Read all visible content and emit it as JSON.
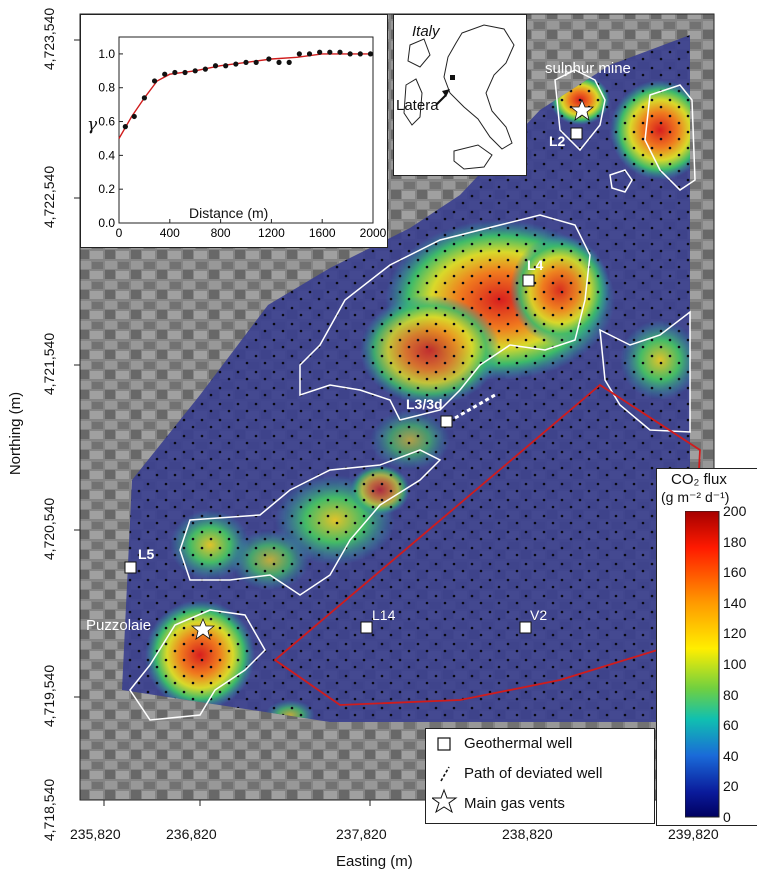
{
  "map": {
    "x_axis_title": "Easting (m)",
    "y_axis_title": "Northing (m)",
    "x_ticks": [
      "235,820",
      "236,820",
      "237,820",
      "238,820",
      "239,820"
    ],
    "y_ticks": [
      "4,723,540",
      "4,722,540",
      "4,721,540",
      "4,720,540",
      "4,719,540",
      "4,718,540"
    ],
    "labels": {
      "sulphur_mine": "sulphur mine",
      "L2": "L2",
      "L4": "L4",
      "L3": "L3/3d",
      "L5": "L5",
      "L14": "L14",
      "V2": "V2",
      "puzzolaie": "Puzzolaie"
    },
    "colors": {
      "low_flux": "#3a3f8f",
      "boundary": "#ffffff",
      "study_area": "#d01c1c"
    }
  },
  "inset_locator": {
    "country": "Italy",
    "site": "Latera"
  },
  "variogram": {
    "y_label": "γ",
    "x_label": "Distance (m)",
    "y_ticks": [
      "0.0",
      "0.2",
      "0.4",
      "0.6",
      "0.8",
      "1.0"
    ],
    "x_ticks": [
      "0",
      "400",
      "800",
      "1200",
      "1600",
      "2000"
    ]
  },
  "colorbar": {
    "title_line1": "CO₂ flux",
    "title_line2": "(g m⁻² d⁻¹)",
    "ticks": [
      "200",
      "180",
      "160",
      "140",
      "120",
      "100",
      "80",
      "60",
      "40",
      "20",
      "0"
    ]
  },
  "legend": {
    "well": "Geothermal well",
    "path": "Path of deviated well",
    "vents": "Main gas vents"
  },
  "chart_data": {
    "type": "scatter",
    "xlabel": "Distance (m)",
    "ylabel": "γ",
    "xlim": [
      0,
      2000
    ],
    "ylim": [
      0.0,
      1.1
    ],
    "series": [
      {
        "x": [
          50,
          120,
          200,
          280,
          360,
          440,
          520,
          600,
          680,
          760,
          840,
          920,
          1000,
          1080,
          1180,
          1260,
          1340,
          1420,
          1500,
          1580,
          1660,
          1740,
          1820,
          1900,
          1980
        ],
        "values": [
          0.57,
          0.63,
          0.74,
          0.84,
          0.88,
          0.89,
          0.89,
          0.9,
          0.91,
          0.93,
          0.93,
          0.94,
          0.95,
          0.95,
          0.97,
          0.95,
          0.95,
          1.0,
          1.0,
          1.01,
          1.01,
          1.01,
          1.0,
          1.0,
          1.0
        ]
      },
      {
        "x": [
          0,
          100,
          200,
          300,
          400,
          600,
          800,
          1000,
          1200,
          1400,
          1600,
          1800,
          2000
        ],
        "values": [
          0.5,
          0.63,
          0.74,
          0.84,
          0.88,
          0.9,
          0.93,
          0.95,
          0.97,
          0.98,
          1.0,
          1.0,
          1.0
        ]
      }
    ]
  }
}
